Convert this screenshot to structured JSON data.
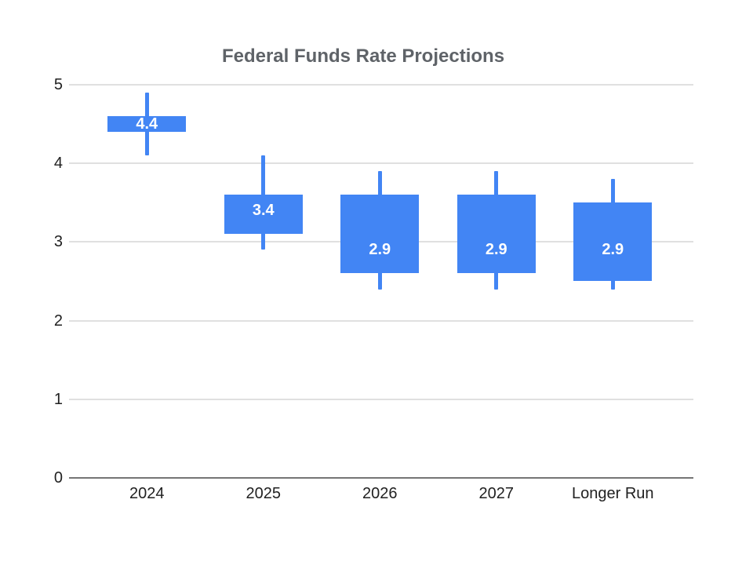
{
  "page": {
    "background": "#ffffff"
  },
  "chart_data": {
    "type": "candlestick",
    "title": "Federal Funds Rate Projections",
    "xlabel": "",
    "ylabel": "",
    "legend": "none",
    "grid": true,
    "ylim": [
      0,
      5
    ],
    "yticks": [
      0,
      1,
      2,
      3,
      4,
      5
    ],
    "categories": [
      "2024",
      "2025",
      "2026",
      "2027",
      "Longer Run"
    ],
    "candles": [
      {
        "category": "2024",
        "low": 4.1,
        "box_low": 4.4,
        "box_high": 4.6,
        "high": 4.9,
        "median": 4.4,
        "label": "4.4"
      },
      {
        "category": "2025",
        "low": 2.9,
        "box_low": 3.1,
        "box_high": 3.6,
        "high": 4.1,
        "median": 3.4,
        "label": "3.4"
      },
      {
        "category": "2026",
        "low": 2.4,
        "box_low": 2.6,
        "box_high": 3.6,
        "high": 3.9,
        "median": 2.9,
        "label": "2.9"
      },
      {
        "category": "2027",
        "low": 2.4,
        "box_low": 2.6,
        "box_high": 3.6,
        "high": 3.9,
        "median": 2.9,
        "label": "2.9"
      },
      {
        "category": "Longer Run",
        "low": 2.4,
        "box_low": 2.5,
        "box_high": 3.5,
        "high": 3.8,
        "median": 2.9,
        "label": "2.9"
      }
    ],
    "colors": {
      "candle": "#4285f4",
      "candle_label_text": "#ffffff",
      "gridline": "#e0e0e0",
      "axis_line": "#757575",
      "tick_label": "#212121",
      "title": "#5f6368"
    }
  }
}
